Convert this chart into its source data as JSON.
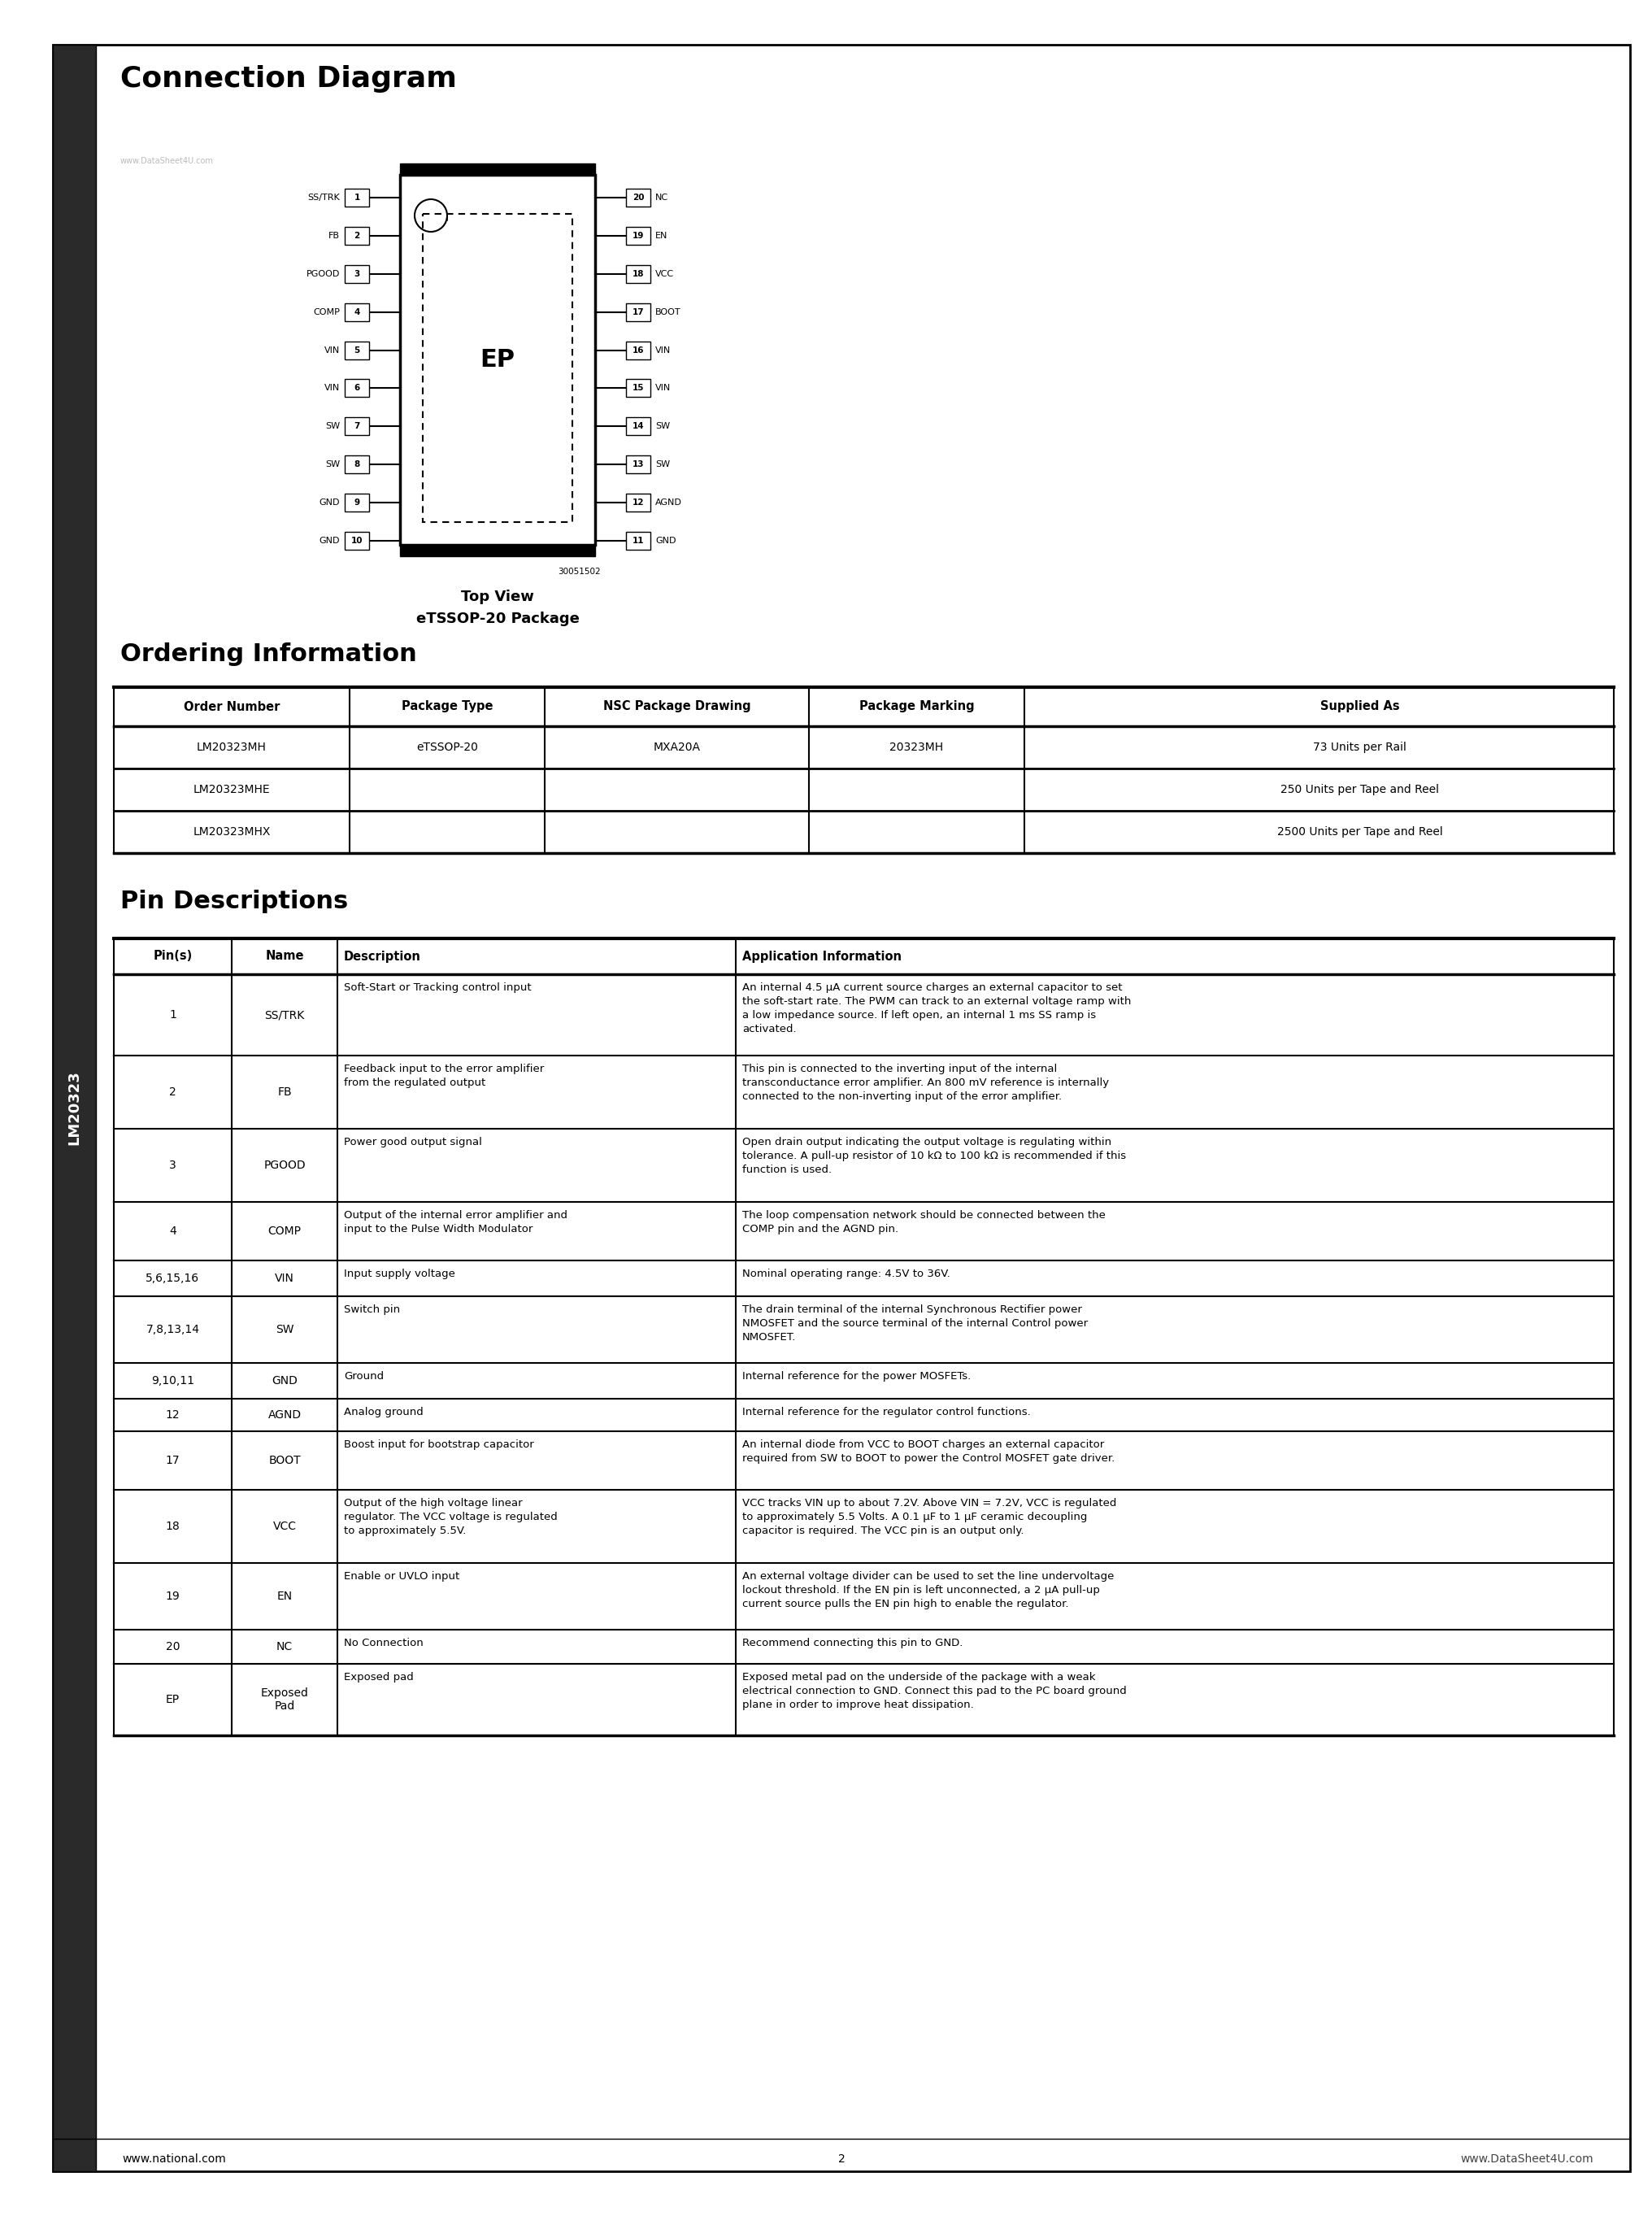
{
  "page_bg": "#ffffff",
  "title_connection": "Connection Diagram",
  "title_ordering": "Ordering Information",
  "title_pin": "Pin Descriptions",
  "chip_label": "EP",
  "top_view_label": "Top View",
  "package_label": "eTSSOP-20 Package",
  "part_number": "30051502",
  "lm_label": "LM20323",
  "watermark": "www.DataSheet4U.com",
  "left_pins": [
    [
      "SS/TRK",
      "1"
    ],
    [
      "FB",
      "2"
    ],
    [
      "PGOOD",
      "3"
    ],
    [
      "COMP",
      "4"
    ],
    [
      "VIN",
      "5"
    ],
    [
      "VIN",
      "6"
    ],
    [
      "SW",
      "7"
    ],
    [
      "SW",
      "8"
    ],
    [
      "GND",
      "9"
    ],
    [
      "GND",
      "10"
    ]
  ],
  "right_pins": [
    [
      "20",
      "NC"
    ],
    [
      "19",
      "EN"
    ],
    [
      "18",
      "VCC"
    ],
    [
      "17",
      "BOOT"
    ],
    [
      "16",
      "VIN"
    ],
    [
      "15",
      "VIN"
    ],
    [
      "14",
      "SW"
    ],
    [
      "13",
      "SW"
    ],
    [
      "12",
      "AGND"
    ],
    [
      "11",
      "GND"
    ]
  ],
  "ordering_headers": [
    "Order Number",
    "Package Type",
    "NSC Package Drawing",
    "Package Marking",
    "Supplied As"
  ],
  "ordering_rows": [
    [
      "LM20323MH",
      "eTSSOP-20",
      "MXA20A",
      "20323MH",
      "73 Units per Rail"
    ],
    [
      "LM20323MHE",
      "",
      "",
      "",
      "250 Units per Tape and Reel"
    ],
    [
      "LM20323MHX",
      "",
      "",
      "",
      "2500 Units per Tape and Reel"
    ]
  ],
  "pin_headers": [
    "Pin(s)",
    "Name",
    "Description",
    "Application Information"
  ],
  "pin_rows": [
    [
      "1",
      "SS/TRK",
      "Soft-Start or Tracking control input",
      "An internal 4.5 μA current source charges an external capacitor to set\nthe soft-start rate. The PWM can track to an external voltage ramp with\na low impedance source. If left open, an internal 1 ms SS ramp is\nactivated."
    ],
    [
      "2",
      "FB",
      "Feedback input to the error amplifier\nfrom the regulated output",
      "This pin is connected to the inverting input of the internal\ntransconductance error amplifier. An 800 mV reference is internally\nconnected to the non-inverting input of the error amplifier."
    ],
    [
      "3",
      "PGOOD",
      "Power good output signal",
      "Open drain output indicating the output voltage is regulating within\ntolerance. A pull-up resistor of 10 kΩ to 100 kΩ is recommended if this\nfunction is used."
    ],
    [
      "4",
      "COMP",
      "Output of the internal error amplifier and\ninput to the Pulse Width Modulator",
      "The loop compensation network should be connected between the\nCOMP pin and the AGND pin."
    ],
    [
      "5,6,15,16",
      "VIN",
      "Input supply voltage",
      "Nominal operating range: 4.5V to 36V."
    ],
    [
      "7,8,13,14",
      "SW",
      "Switch pin",
      "The drain terminal of the internal Synchronous Rectifier power\nNMOSFET and the source terminal of the internal Control power\nNMOSFET."
    ],
    [
      "9,10,11",
      "GND",
      "Ground",
      "Internal reference for the power MOSFETs."
    ],
    [
      "12",
      "AGND",
      "Analog ground",
      "Internal reference for the regulator control functions."
    ],
    [
      "17",
      "BOOT",
      "Boost input for bootstrap capacitor",
      "An internal diode from VCC to BOOT charges an external capacitor\nrequired from SW to BOOT to power the Control MOSFET gate driver."
    ],
    [
      "18",
      "VCC",
      "Output of the high voltage linear\nregulator. The VCC voltage is regulated\nto approximately 5.5V.",
      "VCC tracks VIN up to about 7.2V. Above VIN = 7.2V, VCC is regulated\nto approximately 5.5 Volts. A 0.1 μF to 1 μF ceramic decoupling\ncapacitor is required. The VCC pin is an output only."
    ],
    [
      "19",
      "EN",
      "Enable or UVLO input",
      "An external voltage divider can be used to set the line undervoltage\nlockout threshold. If the EN pin is left unconnected, a 2 μA pull-up\ncurrent source pulls the EN pin high to enable the regulator."
    ],
    [
      "20",
      "NC",
      "No Connection",
      "Recommend connecting this pin to GND."
    ],
    [
      "EP",
      "Exposed\nPad",
      "Exposed pad",
      "Exposed metal pad on the underside of the package with a weak\nelectrical connection to GND. Connect this pad to the PC board ground\nplane in order to improve heat dissipation."
    ]
  ],
  "footer_left": "www.national.com",
  "footer_center": "2",
  "footer_right": "www.DataSheet4U.com"
}
